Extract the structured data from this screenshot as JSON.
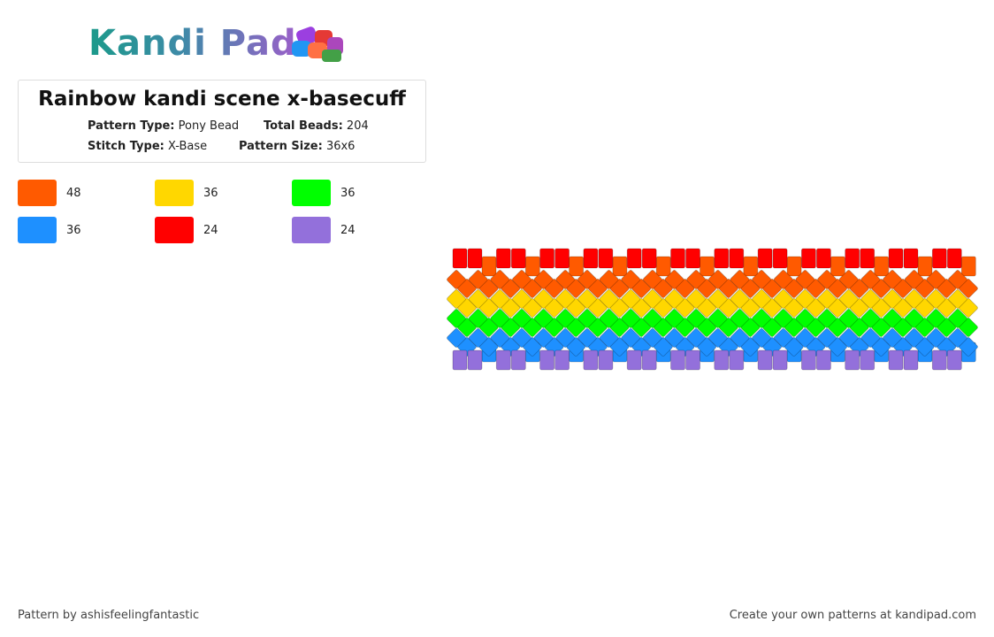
{
  "header": {
    "logo": "Kandi Pad"
  },
  "pattern": {
    "title": "Rainbow kandi scene x-basecuff",
    "fields": [
      {
        "label": "Pattern Type:",
        "value": "Pony Bead"
      },
      {
        "label": "Total Beads:",
        "value": "204"
      },
      {
        "label": "Stitch Type:",
        "value": "X-Base"
      },
      {
        "label": "Pattern Size:",
        "value": "36x6"
      }
    ]
  },
  "palette": [
    {
      "color": "#ff5a00",
      "count": 48
    },
    {
      "color": "#ffd700",
      "count": 36
    },
    {
      "color": "#00ff00",
      "count": 36
    },
    {
      "color": "#1e90ff",
      "count": 36
    },
    {
      "color": "#ff0000",
      "count": 24
    },
    {
      "color": "#9370db",
      "count": 24
    }
  ],
  "footer": {
    "author": "Pattern by ashisfeelingfantastic",
    "cta": "Create your own patterns at kandipad.com"
  }
}
